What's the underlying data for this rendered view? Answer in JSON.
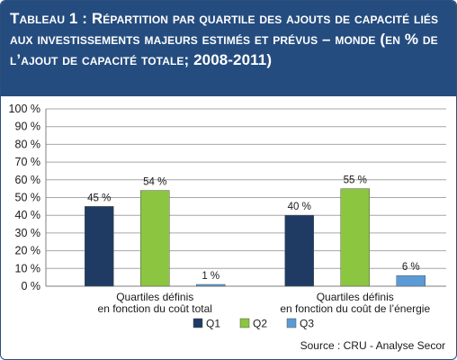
{
  "title": {
    "lead": "Tableau 1 :",
    "text": "Répartition par quartile des ajouts de capacité liés aux investissements majeurs estimés et prévus – monde (en % de l’ajout de capacité totale; 2008-2011)"
  },
  "source": "Source : CRU - Analyse Secor",
  "colors": {
    "header": "#254c7f",
    "Q1": "#1f3b63",
    "Q2": "#8cc540",
    "Q3": "#5b9bd5"
  },
  "chart_data": {
    "type": "bar",
    "categories": [
      [
        "Quartiles définis",
        "en fonction du coût total"
      ],
      [
        "Quartiles définis",
        "en fonction du coût de l’énergie"
      ]
    ],
    "series": [
      {
        "name": "Q1",
        "values": [
          45,
          40
        ],
        "labels": [
          "45 %",
          "40 %"
        ]
      },
      {
        "name": "Q2",
        "values": [
          54,
          55
        ],
        "labels": [
          "54 %",
          "55 %"
        ]
      },
      {
        "name": "Q3",
        "values": [
          1,
          6
        ],
        "labels": [
          "1 %",
          "6 %"
        ]
      }
    ],
    "ylim": [
      0,
      100
    ],
    "yticks": [
      "0 %",
      "10 %",
      "20 %",
      "30 %",
      "40 %",
      "50 %",
      "60 %",
      "70 %",
      "80 %",
      "90 %",
      "100 %"
    ],
    "grid": true,
    "legend": "bottom"
  }
}
